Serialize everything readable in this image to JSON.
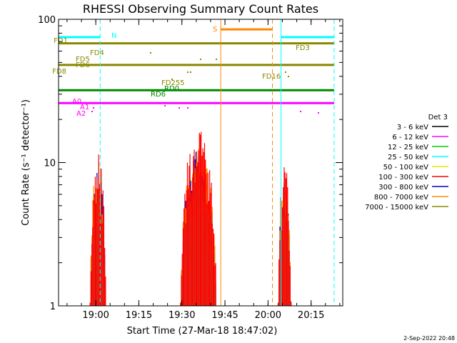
{
  "chart_data": {
    "type": "line",
    "title": "RHESSI Observing Summary Count Rates",
    "xlabel": "Start Time (27-Mar-18 18:47:02)",
    "ylabel": "Count Rate (s⁻¹ detector⁻¹)",
    "y_scale": "log",
    "ylim": [
      1,
      100
    ],
    "xlim_minutes_from_start": [
      0,
      99
    ],
    "x_ticks": [
      {
        "label": "19:00",
        "min": 12.97
      },
      {
        "label": "19:15",
        "min": 27.97
      },
      {
        "label": "19:30",
        "min": 42.97
      },
      {
        "label": "19:45",
        "min": 57.97
      },
      {
        "label": "20:00",
        "min": 72.97
      },
      {
        "label": "20:15",
        "min": 87.97
      }
    ],
    "y_ticks": [
      {
        "label": "1",
        "value": 1
      },
      {
        "label": "10",
        "value": 10
      },
      {
        "label": "100",
        "value": 100
      }
    ],
    "legend": {
      "title": "Det 3",
      "placement": "right",
      "entries": [
        {
          "label": "3 - 6 keV",
          "color": "#000000"
        },
        {
          "label": "6 - 12 keV",
          "color": "#ff00ff"
        },
        {
          "label": "12 - 25 keV",
          "color": "#00cc00"
        },
        {
          "label": "25 - 50 keV",
          "color": "#00ffff"
        },
        {
          "label": "50 - 100 keV",
          "color": "#e6e600"
        },
        {
          "label": "100 - 300 keV",
          "color": "#ff0000"
        },
        {
          "label": "300 - 800 keV",
          "color": "#0000cc"
        },
        {
          "label": "800 - 7000 keV",
          "color": "#ff8800"
        },
        {
          "label": "7000 - 15000 keV",
          "color": "#888800"
        }
      ]
    },
    "flag_bars": [
      {
        "label": "N",
        "color": "#00ffff",
        "value": 75,
        "segments": [
          [
            0,
            14.5
          ],
          [
            77.5,
            96
          ]
        ]
      },
      {
        "label": "S",
        "color": "#ff8800",
        "value": 85,
        "segments": [
          [
            56.5,
            74.5
          ]
        ]
      },
      {
        "label": "FD1",
        "color": "#888800",
        "value": 68,
        "segments": [
          [
            0,
            96
          ]
        ]
      },
      {
        "label": "FD3",
        "color": "#888800",
        "value": 68,
        "segments": []
      },
      {
        "label": "FD4",
        "color": "#888800",
        "value": 58,
        "segments": []
      },
      {
        "label": "FD5",
        "color": "#888800",
        "value": 52,
        "segments": []
      },
      {
        "label": "FD6",
        "color": "#888800",
        "value": 48,
        "segments": [
          [
            0,
            96
          ]
        ]
      },
      {
        "label": "FD8",
        "color": "#888800",
        "value": 44,
        "segments": []
      },
      {
        "label": "FD16",
        "color": "#888800",
        "value": 39,
        "segments": []
      },
      {
        "label": "FD255",
        "color": "#888800",
        "value": 35,
        "segments": []
      },
      {
        "label": "RD0",
        "color": "#008800",
        "value": 32,
        "segments": [
          [
            0,
            96
          ]
        ]
      },
      {
        "label": "RD6",
        "color": "#008800",
        "value": 29,
        "segments": []
      },
      {
        "label": "A0",
        "color": "#ff00ff",
        "value": 26,
        "segments": [
          [
            0,
            96
          ]
        ]
      },
      {
        "label": "A1",
        "color": "#ff00ff",
        "value": 24,
        "segments": []
      },
      {
        "label": "A2",
        "color": "#ff00ff",
        "value": 22,
        "segments": []
      }
    ],
    "vertical_markers": [
      {
        "min": 14.5,
        "color": "#00ffff",
        "style": "dashed"
      },
      {
        "min": 56.5,
        "color": "#ff8800",
        "style": "solid"
      },
      {
        "min": 74.5,
        "color": "#ff8800",
        "style": "dashed"
      },
      {
        "min": 77.5,
        "color": "#00ffff",
        "style": "solid"
      },
      {
        "min": 96.0,
        "color": "#00ffff",
        "style": "dashed"
      }
    ],
    "bursts": [
      {
        "start_min": 11.0,
        "end_min": 16.5,
        "peak": 12
      },
      {
        "start_min": 42.5,
        "end_min": 55.0,
        "peak": 17
      },
      {
        "start_min": 76.5,
        "end_min": 81.0,
        "peak": 10
      }
    ],
    "footer_date": "2-Sep-2022 20:48"
  }
}
